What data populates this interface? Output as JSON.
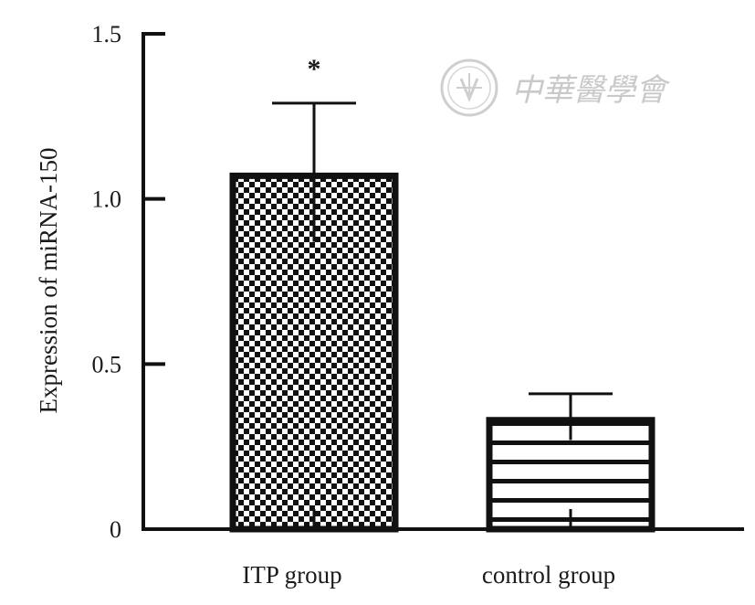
{
  "chart_data": {
    "type": "bar",
    "categories": [
      "ITP group",
      "control group"
    ],
    "values": [
      1.07,
      0.33
    ],
    "error_upper": [
      1.29,
      0.41
    ],
    "error_lower": [
      0.87,
      0.27
    ],
    "significance": [
      "*",
      ""
    ],
    "ylabel": "Expression of miRNA-150",
    "xlabel": "",
    "ylim": [
      0,
      1.5
    ],
    "yticks": [
      0,
      0.5,
      1.0,
      1.5
    ],
    "ytick_labels": [
      "0",
      "0.5",
      "1.0",
      "1.5"
    ],
    "bar_patterns": [
      "checkerboard",
      "horizontal-stripes"
    ],
    "colors": {
      "ink": "#111111",
      "background": "#ffffff",
      "watermark": "#c9c9c9"
    }
  },
  "watermark": {
    "text": "中華醫學會",
    "seal_icon": "society-seal-icon"
  }
}
